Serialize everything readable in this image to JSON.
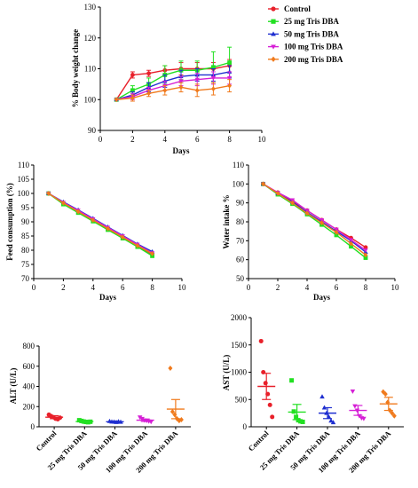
{
  "colors": {
    "control": "#e8202a",
    "tris25": "#22e022",
    "tris50": "#1f2fd0",
    "tris100": "#d61fd6",
    "tris200": "#f07a1c"
  },
  "chart_data": [
    {
      "id": "bw",
      "type": "line",
      "xlabel": "Days",
      "ylabel": "% Body weight change",
      "xlim": [
        0,
        10
      ],
      "ylim": [
        90,
        130
      ],
      "xticks": [
        0,
        2,
        4,
        6,
        8,
        10
      ],
      "yticks": [
        90,
        100,
        110,
        120,
        130
      ],
      "legend": "right",
      "x": [
        1,
        2,
        3,
        4,
        5,
        6,
        7,
        8
      ],
      "series": [
        {
          "name": "Control",
          "key": "control",
          "marker": "circle",
          "values": [
            100,
            108,
            108.5,
            109.5,
            110,
            110,
            110,
            111
          ],
          "err": [
            0,
            1,
            1,
            1.5,
            2,
            2,
            2,
            2
          ]
        },
        {
          "name": "25 mg Tris DBA",
          "key": "tris25",
          "marker": "square",
          "values": [
            100,
            103,
            105,
            108,
            109.5,
            109.5,
            110.5,
            112
          ],
          "err": [
            0,
            1.5,
            2,
            3,
            3,
            3,
            5,
            5
          ]
        },
        {
          "name": "50 mg Tris DBA",
          "key": "tris50",
          "marker": "triangle-up",
          "values": [
            100,
            101.5,
            104,
            106,
            107.5,
            108,
            108,
            109
          ],
          "err": [
            0,
            1,
            1.5,
            2,
            2,
            2,
            2,
            2
          ]
        },
        {
          "name": "100 mg Tris DBA",
          "key": "tris100",
          "marker": "triangle-down",
          "values": [
            100,
            101,
            103,
            104.5,
            106,
            106.5,
            107,
            107
          ],
          "err": [
            0,
            1,
            1,
            1.5,
            1.5,
            2,
            2,
            2
          ]
        },
        {
          "name": "200 mg Tris DBA",
          "key": "tris200",
          "marker": "diamond",
          "values": [
            100,
            100.5,
            102,
            103,
            104,
            103,
            103.5,
            104.5
          ],
          "err": [
            0,
            1,
            1,
            1.5,
            1.5,
            2,
            2,
            2
          ]
        }
      ]
    },
    {
      "id": "feed",
      "type": "line",
      "xlabel": "Days",
      "ylabel": "Feed consumption (%)",
      "xlim": [
        0,
        10
      ],
      "ylim": [
        70,
        110
      ],
      "xticks": [
        0,
        2,
        4,
        6,
        8,
        10
      ],
      "yticks": [
        70,
        75,
        80,
        85,
        90,
        95,
        100,
        105,
        110
      ],
      "x": [
        1,
        2,
        3,
        4,
        5,
        6,
        7,
        8
      ],
      "series": [
        {
          "key": "control",
          "marker": "circle",
          "values": [
            100,
            96.5,
            93.5,
            90.5,
            87.5,
            84.5,
            81.5,
            78.5
          ]
        },
        {
          "key": "tris25",
          "marker": "square",
          "values": [
            100,
            96.2,
            93.2,
            90.2,
            87.2,
            84.2,
            81.2,
            78
          ]
        },
        {
          "key": "tris50",
          "marker": "triangle-up",
          "values": [
            100,
            97,
            94.2,
            91.2,
            88.2,
            85.2,
            82.2,
            79.5
          ]
        },
        {
          "key": "tris100",
          "marker": "triangle-down",
          "values": [
            100,
            96.8,
            94,
            91,
            88,
            85,
            82,
            79
          ]
        },
        {
          "key": "tris200",
          "marker": "diamond",
          "values": [
            100,
            96.6,
            93.6,
            90.6,
            87.6,
            84.6,
            81.6,
            78.8
          ]
        }
      ]
    },
    {
      "id": "water",
      "type": "line",
      "xlabel": "Days",
      "ylabel": "Water intake %",
      "xlim": [
        0,
        10
      ],
      "ylim": [
        50,
        110
      ],
      "xticks": [
        0,
        2,
        4,
        6,
        8,
        10
      ],
      "yticks": [
        50,
        60,
        70,
        80,
        90,
        100,
        110
      ],
      "x": [
        1,
        2,
        3,
        4,
        5,
        6,
        7,
        8
      ],
      "series": [
        {
          "key": "control",
          "marker": "circle",
          "values": [
            100,
            95.5,
            91,
            86,
            81,
            76,
            71.5,
            66.5
          ]
        },
        {
          "key": "tris25",
          "marker": "square",
          "values": [
            100,
            94.5,
            89.5,
            84,
            78.5,
            73,
            67,
            61
          ]
        },
        {
          "key": "tris50",
          "marker": "triangle-up",
          "values": [
            100,
            95,
            90.5,
            85,
            80,
            75,
            70,
            64
          ]
        },
        {
          "key": "tris100",
          "marker": "triangle-down",
          "values": [
            100,
            95.5,
            91.5,
            86,
            81,
            76,
            70.5,
            65
          ]
        },
        {
          "key": "tris200",
          "marker": "diamond",
          "values": [
            100,
            95,
            90,
            84.5,
            79.5,
            74.5,
            68.5,
            62.5
          ]
        }
      ]
    },
    {
      "id": "alt",
      "type": "scatter",
      "ylabel": "ALT (U/L)",
      "ylim": [
        0,
        800
      ],
      "yticks": [
        0,
        200,
        400,
        600,
        800
      ],
      "categories": [
        "Control",
        "25 mg Tris DBA",
        "50 mg Tris DBA",
        "100 mg Tris DBA",
        "200 mg Tris DBA"
      ],
      "groups": [
        {
          "key": "control",
          "marker": "circle",
          "points": [
            120,
            105,
            95,
            80,
            75,
            90
          ],
          "mean": 95,
          "sem": 15
        },
        {
          "key": "tris25",
          "marker": "square",
          "points": [
            65,
            58,
            52,
            48,
            45,
            50
          ],
          "mean": 52,
          "sem": 8
        },
        {
          "key": "tris50",
          "marker": "triangle-up",
          "points": [
            55,
            50,
            48,
            45,
            52,
            47
          ],
          "mean": 50,
          "sem": 6
        },
        {
          "key": "tris100",
          "marker": "triangle-down",
          "points": [
            95,
            80,
            65,
            60,
            55,
            50
          ],
          "mean": 65,
          "sem": 12
        },
        {
          "key": "tris200",
          "marker": "diamond",
          "points": [
            580,
            150,
            120,
            80,
            60,
            70
          ],
          "mean": 175,
          "sem": 95
        }
      ]
    },
    {
      "id": "ast",
      "type": "scatter",
      "ylabel": "AST (U/L)",
      "ylim": [
        0,
        2000
      ],
      "yticks": [
        0,
        500,
        1000,
        1500,
        2000
      ],
      "categories": [
        "Control",
        "25 mg Tris DBA",
        "50 mg Tris DBA",
        "100 mg Tris DBA",
        "200 mg Tris DBA"
      ],
      "groups": [
        {
          "key": "control",
          "marker": "circle",
          "points": [
            1570,
            1000,
            800,
            600,
            400,
            180
          ],
          "mean": 740,
          "sem": 240
        },
        {
          "key": "tris25",
          "marker": "square",
          "points": [
            850,
            280,
            180,
            120,
            100,
            90
          ],
          "mean": 270,
          "sem": 140
        },
        {
          "key": "tris50",
          "marker": "triangle-up",
          "points": [
            550,
            350,
            250,
            180,
            110,
            80
          ],
          "mean": 250,
          "sem": 100
        },
        {
          "key": "tris100",
          "marker": "triangle-down",
          "points": [
            650,
            380,
            300,
            200,
            160,
            150
          ],
          "mean": 300,
          "sem": 90
        },
        {
          "key": "tris200",
          "marker": "diamond",
          "points": [
            640,
            600,
            450,
            300,
            250,
            200
          ],
          "mean": 420,
          "sem": 120
        }
      ]
    }
  ]
}
